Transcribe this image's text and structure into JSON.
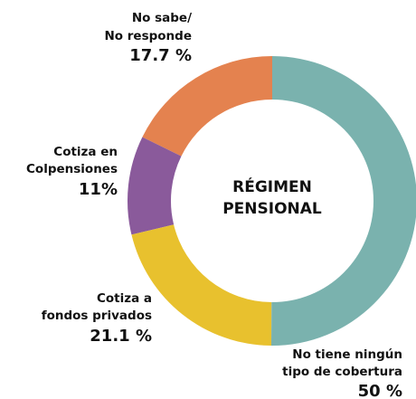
{
  "chart_data": {
    "type": "donut",
    "title": [
      "RÉGIMEN",
      "PENSIONAL"
    ],
    "categories": [
      [
        "No tiene ningún",
        "tipo de cobertura"
      ],
      [
        "Cotiza a",
        "fondos privados"
      ],
      [
        "Cotiza en",
        "Colpensiones"
      ],
      [
        "No sabe/",
        "No responde"
      ]
    ],
    "values": [
      50,
      21.1,
      11,
      17.7
    ],
    "value_labels": [
      "50 %",
      "21.1 %",
      "11%",
      "17.7 %"
    ],
    "colors": [
      "#7ab2ae",
      "#e8c12e",
      "#8a5a9b",
      "#e4824f"
    ]
  }
}
